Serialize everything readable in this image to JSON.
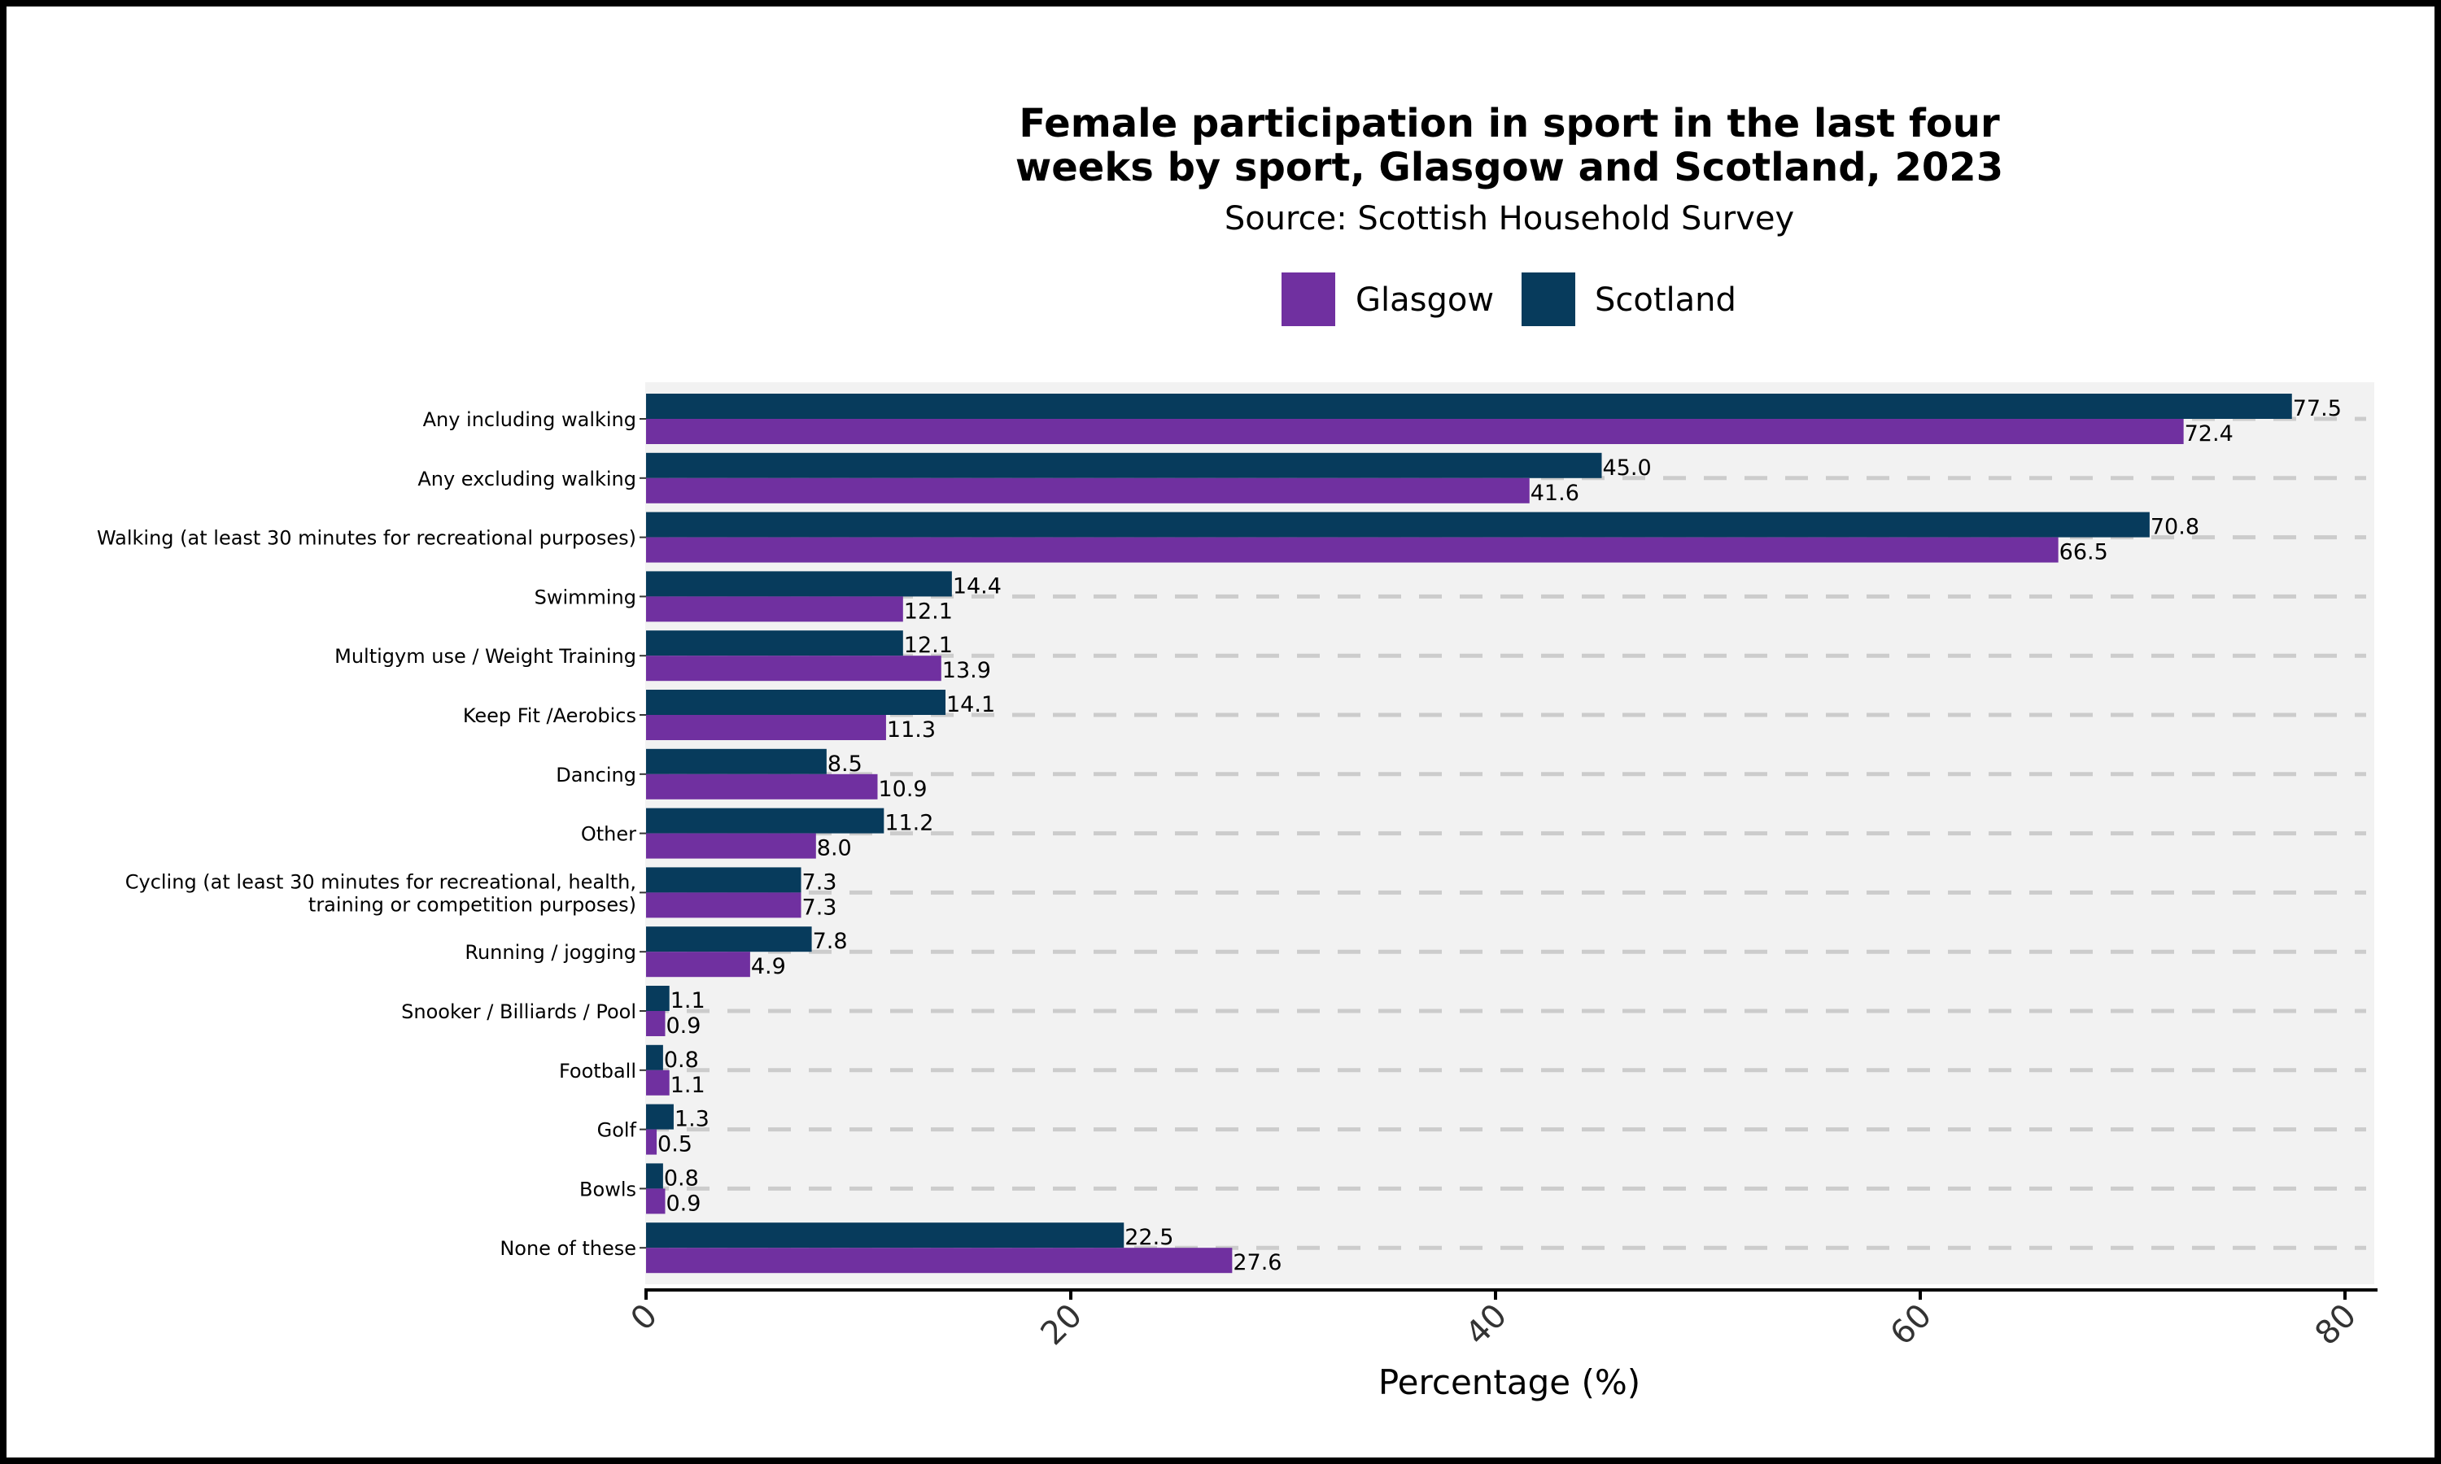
{
  "chart_data": {
    "type": "bar",
    "orientation": "horizontal",
    "title_lines": [
      "Female participation in sport in the last four",
      "weeks by sport, Glasgow and Scotland, 2023"
    ],
    "subtitle": "Source: Scottish Household Survey",
    "xlabel": "Percentage (%)",
    "ylabel": "",
    "xlim": [
      0,
      81.5
    ],
    "x_ticks": [
      "0",
      "20",
      "40",
      "60",
      "80"
    ],
    "legend_position": "top",
    "grid": "dashed horizontal lines per category",
    "categories": [
      [
        "Any including walking"
      ],
      [
        "Any excluding walking"
      ],
      [
        "Walking (at least 30 minutes for recreational purposes)"
      ],
      [
        "Swimming"
      ],
      [
        "Multigym use / Weight Training"
      ],
      [
        "Keep Fit /Aerobics"
      ],
      [
        "Dancing"
      ],
      [
        "Other"
      ],
      [
        "Cycling (at least 30 minutes for recreational, health,",
        "training or competition purposes)"
      ],
      [
        "Running / jogging"
      ],
      [
        "Snooker / Billiards / Pool"
      ],
      [
        "Football"
      ],
      [
        "Golf"
      ],
      [
        "Bowls"
      ],
      [
        "None of these"
      ]
    ],
    "series": [
      {
        "name": "Glasgow",
        "color": "#7030a0",
        "values": [
          72.4,
          41.6,
          66.5,
          12.1,
          13.9,
          11.3,
          10.9,
          8.0,
          7.3,
          4.9,
          0.9,
          1.1,
          0.5,
          0.9,
          27.6
        ],
        "labels": [
          "72.4",
          "41.6",
          "66.5",
          "12.1",
          "13.9",
          "11.3",
          "10.9",
          "8.0",
          "7.3",
          "4.9",
          "0.9",
          "1.1",
          "0.5",
          "0.9",
          "27.6"
        ]
      },
      {
        "name": "Scotland",
        "color": "#073b5c",
        "values": [
          77.5,
          45.0,
          70.8,
          14.4,
          12.1,
          14.1,
          8.5,
          11.2,
          7.3,
          7.8,
          1.1,
          0.8,
          1.3,
          0.8,
          22.5
        ],
        "labels": [
          "77.5",
          "45.0",
          "70.8",
          "14.4",
          "12.1",
          "14.1",
          "8.5",
          "11.2",
          "7.3",
          "7.8",
          "1.1",
          "0.8",
          "1.3",
          "0.8",
          "22.5"
        ]
      }
    ],
    "colors": {
      "panel_background": "#f2f2f2",
      "gridline": "#cccccc",
      "axis_line": "#000000"
    }
  }
}
